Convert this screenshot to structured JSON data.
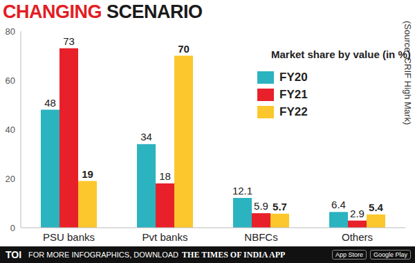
{
  "chart_data": {
    "type": "bar",
    "title": "CHANGING SCENARIO",
    "subtitle": "Market share by value (in %)",
    "annotations": [
      "(Source: CRIF High Mark)"
    ],
    "categories": [
      "PSU banks",
      "Pvt banks",
      "NBFCs",
      "Others"
    ],
    "series": [
      {
        "name": "FY20",
        "color": "#2bb3c0",
        "values": [
          48,
          34,
          12.1,
          6.4
        ]
      },
      {
        "name": "FY21",
        "color": "#e8202a",
        "values": [
          73,
          18,
          5.9,
          2.9
        ]
      },
      {
        "name": "FY22",
        "color": "#fcc72c",
        "values": [
          19,
          70,
          5.7,
          5.4
        ]
      }
    ],
    "ylim": [
      0,
      80
    ],
    "yticks": [
      0,
      20,
      40,
      60,
      80
    ],
    "grid": false,
    "legend": "upper right",
    "data_labels": true
  },
  "footer": {
    "brand": "TOI",
    "text": "FOR MORE INFOGRAPHICS, DOWNLOAD",
    "app": "THE TIMES OF INDIA APP",
    "badges": [
      "App Store",
      "Google Play"
    ]
  }
}
